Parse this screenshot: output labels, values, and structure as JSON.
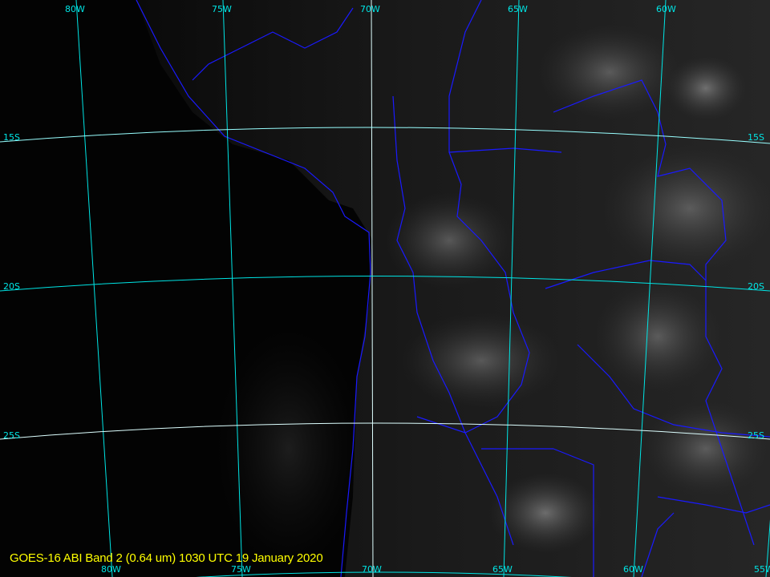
{
  "title": "GOES-16 ABI Band 2 (0.64 um) 1030 UTC 19 January 2020",
  "colors": {
    "grid": "#00e5e5",
    "borders": "#1a1aff",
    "title": "#ffff00",
    "special_parallel": "#ffffff"
  },
  "grid": {
    "top_longitude_labels": [
      "80W",
      "75W",
      "70W",
      "65W",
      "60W"
    ],
    "bottom_longitude_labels": [
      "80W",
      "75W",
      "70W",
      "65W",
      "60W",
      "55W"
    ],
    "left_latitude_labels": [
      "15S",
      "20S",
      "25S"
    ],
    "right_latitude_labels": [
      "15S",
      "20S",
      "25S"
    ]
  }
}
